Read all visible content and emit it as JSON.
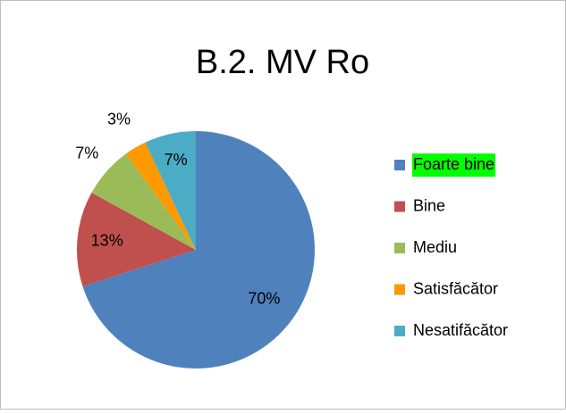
{
  "chart_data": {
    "type": "pie",
    "title": "B.2. MV Ro",
    "categories": [
      "Foarte bine",
      "Bine",
      "Mediu",
      "Satisfăcător",
      "Nesatifăcător"
    ],
    "values": [
      70,
      13,
      7,
      3,
      7
    ],
    "value_labels": [
      "70%",
      "13%",
      "7%",
      "3%",
      "7%"
    ],
    "colors": [
      "#4f81bd",
      "#c0504d",
      "#9bbb59",
      "#ff9900",
      "#4bacc6"
    ],
    "legend": "right",
    "legend_highlight": 0,
    "legend_highlight_color": "#00ff00"
  }
}
